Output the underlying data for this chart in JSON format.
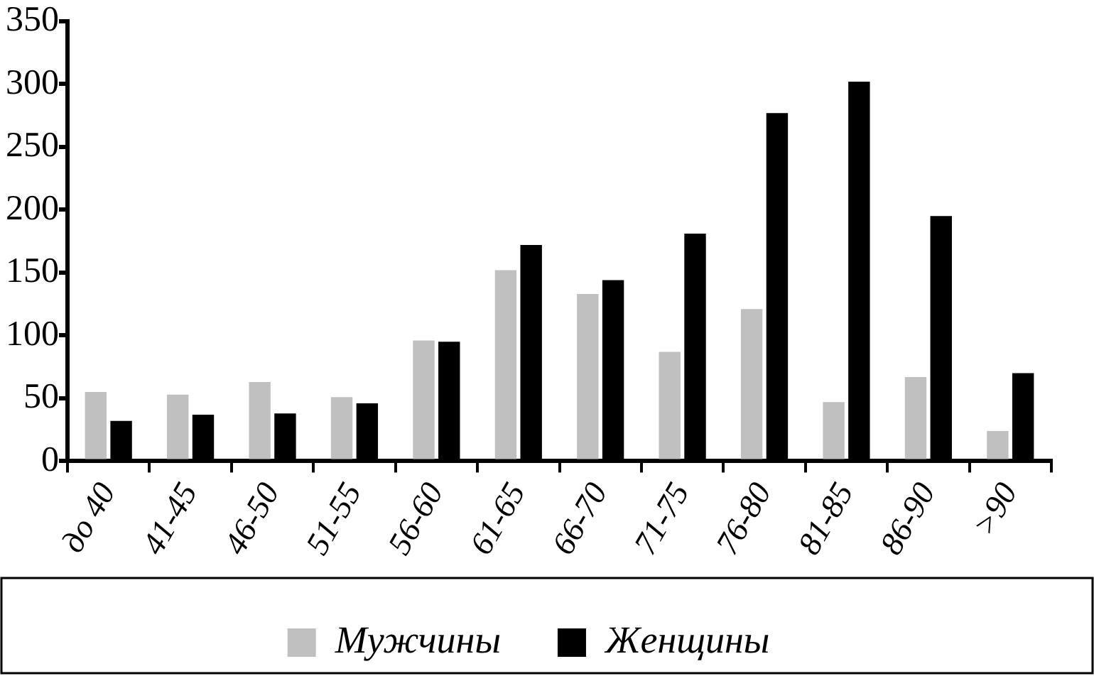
{
  "chart_data": {
    "type": "bar",
    "categories": [
      "до 40",
      "41-45",
      "46-50",
      "51-55",
      "56-60",
      "61-65",
      "66-70",
      "71-75",
      "76-80",
      "81-85",
      "86-90",
      ">90"
    ],
    "series": [
      {
        "name": "Мужчины",
        "color": "#c0c0c0",
        "values": [
          55,
          53,
          63,
          51,
          96,
          152,
          133,
          87,
          121,
          47,
          67,
          24
        ]
      },
      {
        "name": "Женщины",
        "color": "#000000",
        "values": [
          32,
          37,
          38,
          46,
          95,
          172,
          144,
          181,
          277,
          302,
          195,
          70
        ]
      }
    ],
    "ylim": [
      0,
      350
    ],
    "yticks": [
      0,
      50,
      100,
      150,
      200,
      250,
      300,
      350
    ],
    "grid": false,
    "legend": "bottom"
  }
}
